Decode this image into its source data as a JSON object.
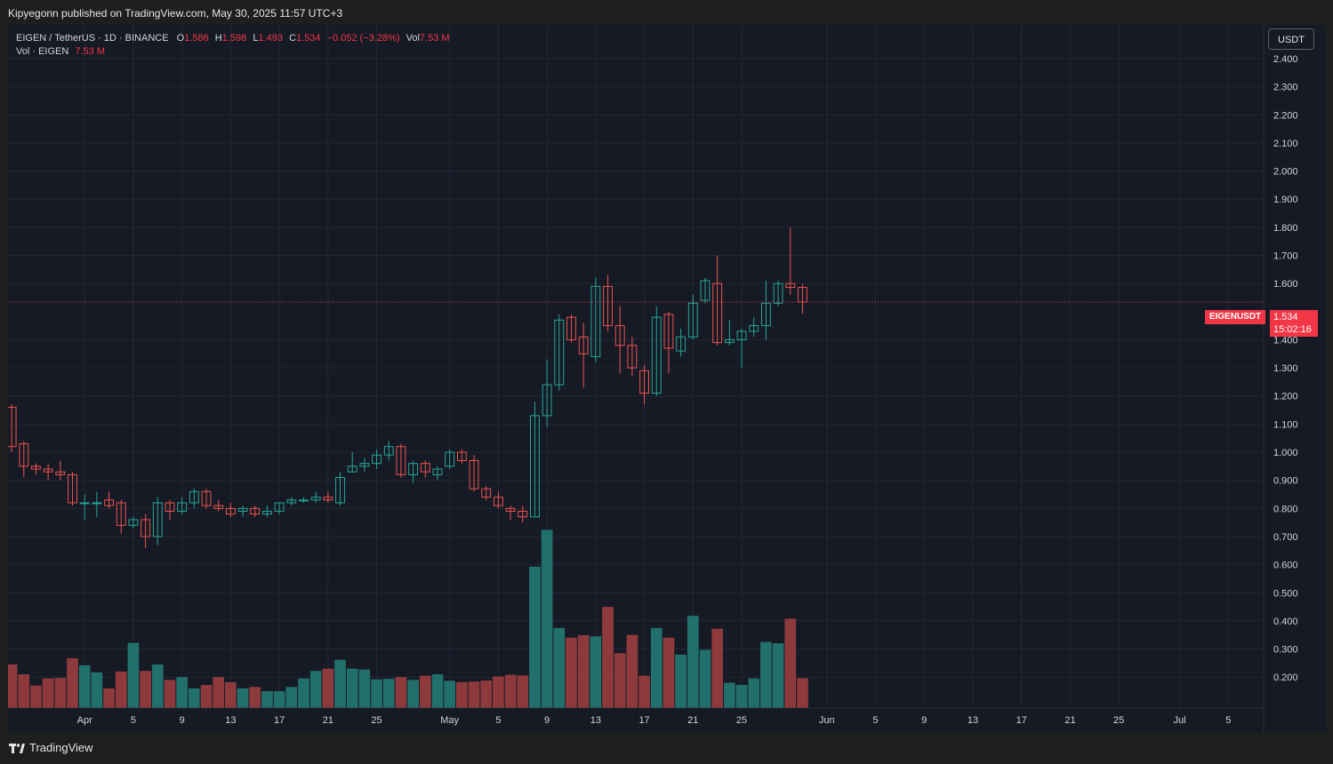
{
  "header": {
    "publisher_line": "Kipyegonn published on TradingView.com, May 30, 2025 11:57 UTC+3"
  },
  "legend": {
    "symbol": "EIGEN / TetherUS · 1D · BINANCE",
    "o_label": "O",
    "o_value": "1.586",
    "h_label": "H",
    "h_value": "1.598",
    "l_label": "L",
    "l_value": "1.493",
    "c_label": "C",
    "c_value": "1.534",
    "change": "−0.052 (−3.28%)",
    "vol_label": "Vol",
    "vol_value": "7.53 M",
    "vol_line_label": "Vol · EIGEN",
    "vol_line_value": "7.53 M"
  },
  "currency_button": "USDT",
  "price_tag": {
    "symbol": "EIGENUSDT",
    "price": "1.534",
    "countdown": "15:02:16"
  },
  "footer": {
    "brand": "TradingView"
  },
  "colors": {
    "up": "#26a69a",
    "down": "#ef5350",
    "up_vol": "#22706b",
    "down_vol": "#8e3a3d",
    "background": "#161a25",
    "grid": "#232734",
    "price_line": "#f23645"
  },
  "chart_data": {
    "type": "candlestick",
    "symbol": "EIGEN / TetherUS",
    "interval": "1D",
    "exchange": "BINANCE",
    "y_ticks": [
      "2.400",
      "2.300",
      "2.200",
      "2.100",
      "2.000",
      "1.900",
      "1.800",
      "1.700",
      "1.600",
      "1.400",
      "1.300",
      "1.200",
      "1.100",
      "1.000",
      "0.900",
      "0.800",
      "0.700",
      "0.600",
      "0.500",
      "0.400",
      "0.300",
      "0.200"
    ],
    "y_range": [
      0.09,
      2.52
    ],
    "x_ticks": [
      {
        "label": "Apr",
        "idx": 6
      },
      {
        "label": "5",
        "idx": 10
      },
      {
        "label": "9",
        "idx": 14
      },
      {
        "label": "13",
        "idx": 18
      },
      {
        "label": "17",
        "idx": 22
      },
      {
        "label": "21",
        "idx": 26
      },
      {
        "label": "25",
        "idx": 30
      },
      {
        "label": "May",
        "idx": 36
      },
      {
        "label": "5",
        "idx": 40
      },
      {
        "label": "9",
        "idx": 44
      },
      {
        "label": "13",
        "idx": 48
      },
      {
        "label": "17",
        "idx": 52
      },
      {
        "label": "21",
        "idx": 56
      },
      {
        "label": "25",
        "idx": 60
      },
      {
        "label": "Jun",
        "idx": 67
      },
      {
        "label": "5",
        "idx": 71
      },
      {
        "label": "9",
        "idx": 75
      },
      {
        "label": "13",
        "idx": 79
      },
      {
        "label": "17",
        "idx": 83
      },
      {
        "label": "21",
        "idx": 87
      },
      {
        "label": "25",
        "idx": 91
      },
      {
        "label": "Jul",
        "idx": 96
      },
      {
        "label": "5",
        "idx": 100
      }
    ],
    "x_range_idx": [
      -0.3,
      102.9
    ],
    "last_price": 1.534,
    "candles": [
      {
        "date": "Mar 26",
        "o": 1.16,
        "h": 1.17,
        "l": 1.0,
        "c": 1.02
      },
      {
        "date": "Mar 27",
        "o": 1.03,
        "h": 1.04,
        "l": 0.91,
        "c": 0.95
      },
      {
        "date": "Mar 28",
        "o": 0.95,
        "h": 0.96,
        "l": 0.92,
        "c": 0.94
      },
      {
        "date": "Mar 29",
        "o": 0.94,
        "h": 0.96,
        "l": 0.9,
        "c": 0.93
      },
      {
        "date": "Mar 30",
        "o": 0.93,
        "h": 0.97,
        "l": 0.9,
        "c": 0.92
      },
      {
        "date": "Mar 31",
        "o": 0.92,
        "h": 0.93,
        "l": 0.81,
        "c": 0.82
      },
      {
        "date": "Apr 1",
        "o": 0.82,
        "h": 0.85,
        "l": 0.76,
        "c": 0.82
      },
      {
        "date": "Apr 2",
        "o": 0.82,
        "h": 0.86,
        "l": 0.77,
        "c": 0.82
      },
      {
        "date": "Apr 3",
        "o": 0.83,
        "h": 0.86,
        "l": 0.8,
        "c": 0.81
      },
      {
        "date": "Apr 4",
        "o": 0.82,
        "h": 0.83,
        "l": 0.71,
        "c": 0.74
      },
      {
        "date": "Apr 5",
        "o": 0.74,
        "h": 0.77,
        "l": 0.73,
        "c": 0.76
      },
      {
        "date": "Apr 6",
        "o": 0.76,
        "h": 0.78,
        "l": 0.66,
        "c": 0.7
      },
      {
        "date": "Apr 7",
        "o": 0.7,
        "h": 0.84,
        "l": 0.67,
        "c": 0.82
      },
      {
        "date": "Apr 8",
        "o": 0.82,
        "h": 0.83,
        "l": 0.76,
        "c": 0.79
      },
      {
        "date": "Apr 9",
        "o": 0.79,
        "h": 0.84,
        "l": 0.78,
        "c": 0.82
      },
      {
        "date": "Apr 10",
        "o": 0.82,
        "h": 0.87,
        "l": 0.8,
        "c": 0.86
      },
      {
        "date": "Apr 11",
        "o": 0.86,
        "h": 0.87,
        "l": 0.8,
        "c": 0.81
      },
      {
        "date": "Apr 12",
        "o": 0.81,
        "h": 0.83,
        "l": 0.79,
        "c": 0.8
      },
      {
        "date": "Apr 13",
        "o": 0.8,
        "h": 0.82,
        "l": 0.77,
        "c": 0.78
      },
      {
        "date": "Apr 14",
        "o": 0.79,
        "h": 0.81,
        "l": 0.77,
        "c": 0.8
      },
      {
        "date": "Apr 15",
        "o": 0.8,
        "h": 0.81,
        "l": 0.77,
        "c": 0.78
      },
      {
        "date": "Apr 16",
        "o": 0.78,
        "h": 0.81,
        "l": 0.77,
        "c": 0.79
      },
      {
        "date": "Apr 17",
        "o": 0.79,
        "h": 0.82,
        "l": 0.78,
        "c": 0.82
      },
      {
        "date": "Apr 18",
        "o": 0.82,
        "h": 0.84,
        "l": 0.81,
        "c": 0.83
      },
      {
        "date": "Apr 19",
        "o": 0.83,
        "h": 0.84,
        "l": 0.82,
        "c": 0.83
      },
      {
        "date": "Apr 20",
        "o": 0.83,
        "h": 0.86,
        "l": 0.82,
        "c": 0.84
      },
      {
        "date": "Apr 21",
        "o": 0.84,
        "h": 0.86,
        "l": 0.82,
        "c": 0.83
      },
      {
        "date": "Apr 22",
        "o": 0.82,
        "h": 0.93,
        "l": 0.81,
        "c": 0.91
      },
      {
        "date": "Apr 23",
        "o": 0.93,
        "h": 1.0,
        "l": 0.93,
        "c": 0.95
      },
      {
        "date": "Apr 24",
        "o": 0.95,
        "h": 0.98,
        "l": 0.93,
        "c": 0.96
      },
      {
        "date": "Apr 25",
        "o": 0.96,
        "h": 1.01,
        "l": 0.94,
        "c": 0.99
      },
      {
        "date": "Apr 26",
        "o": 0.99,
        "h": 1.04,
        "l": 0.97,
        "c": 1.02
      },
      {
        "date": "Apr 27",
        "o": 1.02,
        "h": 1.03,
        "l": 0.91,
        "c": 0.92
      },
      {
        "date": "Apr 28",
        "o": 0.92,
        "h": 0.97,
        "l": 0.89,
        "c": 0.96
      },
      {
        "date": "Apr 29",
        "o": 0.96,
        "h": 0.97,
        "l": 0.91,
        "c": 0.93
      },
      {
        "date": "Apr 30",
        "o": 0.92,
        "h": 0.95,
        "l": 0.9,
        "c": 0.94
      },
      {
        "date": "May 1",
        "o": 0.95,
        "h": 1.01,
        "l": 0.94,
        "c": 1.0
      },
      {
        "date": "May 2",
        "o": 1.0,
        "h": 1.01,
        "l": 0.96,
        "c": 0.97
      },
      {
        "date": "May 3",
        "o": 0.97,
        "h": 0.99,
        "l": 0.86,
        "c": 0.87
      },
      {
        "date": "May 4",
        "o": 0.87,
        "h": 0.88,
        "l": 0.83,
        "c": 0.84
      },
      {
        "date": "May 5",
        "o": 0.84,
        "h": 0.86,
        "l": 0.8,
        "c": 0.81
      },
      {
        "date": "May 6",
        "o": 0.8,
        "h": 0.81,
        "l": 0.76,
        "c": 0.79
      },
      {
        "date": "May 7",
        "o": 0.79,
        "h": 0.81,
        "l": 0.75,
        "c": 0.77
      },
      {
        "date": "May 8",
        "o": 0.77,
        "h": 1.18,
        "l": 0.77,
        "c": 1.13
      },
      {
        "date": "May 9",
        "o": 1.13,
        "h": 1.33,
        "l": 1.09,
        "c": 1.24
      },
      {
        "date": "May 10",
        "o": 1.24,
        "h": 1.49,
        "l": 1.22,
        "c": 1.47
      },
      {
        "date": "May 11",
        "o": 1.48,
        "h": 1.49,
        "l": 1.39,
        "c": 1.4
      },
      {
        "date": "May 12",
        "o": 1.41,
        "h": 1.46,
        "l": 1.23,
        "c": 1.35
      },
      {
        "date": "May 13",
        "o": 1.34,
        "h": 1.62,
        "l": 1.32,
        "c": 1.59
      },
      {
        "date": "May 14",
        "o": 1.59,
        "h": 1.63,
        "l": 1.43,
        "c": 1.45
      },
      {
        "date": "May 15",
        "o": 1.45,
        "h": 1.52,
        "l": 1.28,
        "c": 1.38
      },
      {
        "date": "May 16",
        "o": 1.38,
        "h": 1.41,
        "l": 1.27,
        "c": 1.3
      },
      {
        "date": "May 17",
        "o": 1.29,
        "h": 1.31,
        "l": 1.17,
        "c": 1.21
      },
      {
        "date": "May 18",
        "o": 1.21,
        "h": 1.52,
        "l": 1.2,
        "c": 1.48
      },
      {
        "date": "May 19",
        "o": 1.49,
        "h": 1.5,
        "l": 1.28,
        "c": 1.37
      },
      {
        "date": "May 20",
        "o": 1.36,
        "h": 1.44,
        "l": 1.34,
        "c": 1.41
      },
      {
        "date": "May 21",
        "o": 1.41,
        "h": 1.56,
        "l": 1.4,
        "c": 1.53
      },
      {
        "date": "May 22",
        "o": 1.54,
        "h": 1.62,
        "l": 1.53,
        "c": 1.61
      },
      {
        "date": "May 23",
        "o": 1.6,
        "h": 1.7,
        "l": 1.38,
        "c": 1.39
      },
      {
        "date": "May 24",
        "o": 1.39,
        "h": 1.47,
        "l": 1.38,
        "c": 1.4
      },
      {
        "date": "May 25",
        "o": 1.4,
        "h": 1.44,
        "l": 1.3,
        "c": 1.43
      },
      {
        "date": "May 26",
        "o": 1.43,
        "h": 1.48,
        "l": 1.41,
        "c": 1.45
      },
      {
        "date": "May 27",
        "o": 1.45,
        "h": 1.61,
        "l": 1.4,
        "c": 1.53
      },
      {
        "date": "May 28",
        "o": 1.53,
        "h": 1.61,
        "l": 1.52,
        "c": 1.6
      },
      {
        "date": "May 29",
        "o": 1.6,
        "h": 1.8,
        "l": 1.56,
        "c": 1.586
      },
      {
        "date": "May 30",
        "o": 1.586,
        "h": 1.598,
        "l": 1.493,
        "c": 1.534
      }
    ],
    "volume_note": "volume bars drawn to the price scale",
    "volumes": [
      0.245,
      0.21,
      0.17,
      0.195,
      0.197,
      0.267,
      0.242,
      0.217,
      0.16,
      0.22,
      0.322,
      0.222,
      0.245,
      0.19,
      0.2,
      0.16,
      0.172,
      0.2,
      0.182,
      0.16,
      0.165,
      0.15,
      0.15,
      0.165,
      0.195,
      0.222,
      0.23,
      0.262,
      0.23,
      0.227,
      0.192,
      0.194,
      0.2,
      0.19,
      0.205,
      0.21,
      0.187,
      0.182,
      0.184,
      0.188,
      0.202,
      0.208,
      0.206,
      0.593,
      0.724,
      0.375,
      0.34,
      0.349,
      0.345,
      0.45,
      0.285,
      0.35,
      0.205,
      0.375,
      0.34,
      0.28,
      0.418,
      0.297,
      0.372,
      0.18,
      0.172,
      0.195,
      0.325,
      0.32,
      0.408,
      0.196
    ]
  }
}
